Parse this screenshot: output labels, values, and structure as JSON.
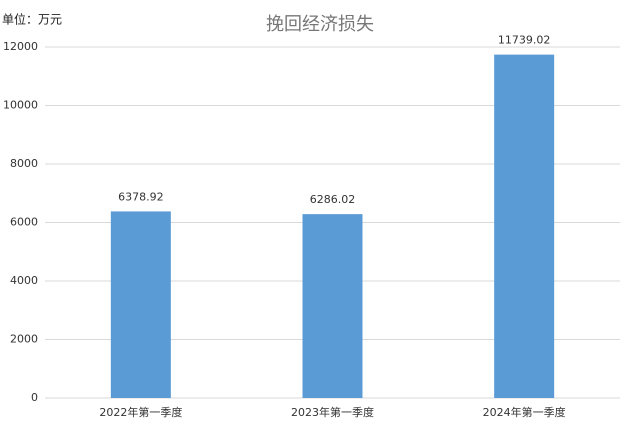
{
  "chart_data": {
    "type": "bar",
    "title": "挽回经济损失",
    "unit_label": "单位：万元",
    "categories": [
      "2022年第一季度",
      "2023年第一季度",
      "2024年第一季度"
    ],
    "values": [
      6378.92,
      6286.02,
      11739.02
    ],
    "color": "#5b9bd5",
    "ylim": [
      0,
      12000
    ],
    "yticks": [
      0,
      2000,
      4000,
      6000,
      8000,
      10000,
      12000
    ],
    "grid": true,
    "data_labels": true
  }
}
